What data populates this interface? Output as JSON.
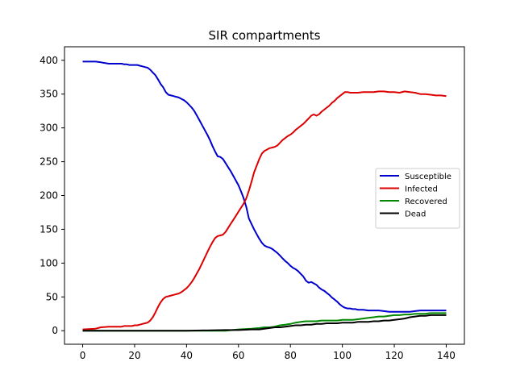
{
  "chart_data": {
    "type": "line",
    "title": "SIR compartments",
    "xlabel": "",
    "ylabel": "",
    "xlim": [
      -7,
      147
    ],
    "ylim": [
      -20,
      420
    ],
    "xticks": [
      0,
      20,
      40,
      60,
      80,
      100,
      120,
      140
    ],
    "yticks": [
      0,
      50,
      100,
      150,
      200,
      250,
      300,
      350,
      400
    ],
    "grid": false,
    "legend_position": "center-right",
    "series": [
      {
        "name": "Susceptible",
        "color": "#0000cc",
        "x": [
          0,
          5,
          7,
          10,
          14,
          15,
          16,
          17,
          18,
          19,
          20,
          21,
          22,
          23,
          24,
          25,
          26,
          27,
          28,
          29,
          30,
          31,
          32,
          33,
          34,
          35,
          36,
          37,
          38,
          39,
          40,
          41,
          42,
          43,
          44,
          45,
          46,
          47,
          48,
          49,
          50,
          51,
          52,
          53,
          54,
          55,
          56,
          57,
          58,
          59,
          60,
          61,
          62,
          63,
          64,
          65,
          66,
          67,
          68,
          69,
          70,
          71,
          72,
          73,
          74,
          75,
          76,
          77,
          78,
          79,
          80,
          81,
          82,
          83,
          84,
          85,
          86,
          87,
          88,
          89,
          90,
          91,
          92,
          93,
          94,
          95,
          96,
          97,
          98,
          99,
          100,
          101,
          102,
          103,
          104,
          105,
          106,
          108,
          110,
          112,
          114,
          116,
          118,
          120,
          122,
          124,
          126,
          128,
          130,
          132,
          134,
          136,
          138,
          140
        ],
        "values": [
          398,
          398,
          397,
          395,
          395,
          395,
          394,
          394,
          393,
          393,
          393,
          393,
          392,
          391,
          390,
          389,
          386,
          382,
          378,
          372,
          365,
          360,
          353,
          349,
          348,
          347,
          346,
          345,
          343,
          341,
          338,
          334,
          330,
          325,
          318,
          311,
          304,
          297,
          290,
          282,
          273,
          265,
          258,
          257,
          254,
          248,
          242,
          236,
          229,
          222,
          215,
          206,
          196,
          183,
          166,
          158,
          150,
          143,
          136,
          130,
          126,
          124,
          123,
          121,
          118,
          115,
          111,
          107,
          103,
          100,
          96,
          93,
          91,
          88,
          84,
          80,
          74,
          71,
          72,
          70,
          68,
          64,
          61,
          59,
          56,
          53,
          49,
          46,
          43,
          39,
          36,
          34,
          33,
          33,
          32,
          32,
          31,
          31,
          30,
          30,
          30,
          29,
          28,
          28,
          28,
          28,
          28,
          29,
          30,
          30,
          30,
          30,
          30,
          30
        ]
      },
      {
        "name": "Infected",
        "color": "#dd0000",
        "x": [
          0,
          5,
          7,
          10,
          14,
          15,
          16,
          17,
          18,
          19,
          20,
          21,
          22,
          23,
          24,
          25,
          26,
          27,
          28,
          29,
          30,
          31,
          32,
          33,
          34,
          35,
          36,
          37,
          38,
          39,
          40,
          41,
          42,
          43,
          44,
          45,
          46,
          47,
          48,
          49,
          50,
          51,
          52,
          53,
          54,
          55,
          56,
          57,
          58,
          59,
          60,
          61,
          62,
          63,
          64,
          65,
          66,
          67,
          68,
          69,
          70,
          71,
          72,
          73,
          74,
          75,
          76,
          77,
          78,
          79,
          80,
          81,
          82,
          83,
          84,
          85,
          86,
          87,
          88,
          89,
          90,
          91,
          92,
          93,
          94,
          95,
          96,
          97,
          98,
          99,
          100,
          101,
          102,
          103,
          104,
          105,
          106,
          108,
          110,
          112,
          114,
          116,
          118,
          120,
          122,
          124,
          126,
          128,
          130,
          132,
          134,
          136,
          138,
          140
        ],
        "values": [
          2,
          3,
          5,
          6,
          6,
          6,
          7,
          7,
          7,
          7,
          8,
          8,
          9,
          10,
          11,
          12,
          15,
          20,
          27,
          35,
          42,
          47,
          50,
          51,
          52,
          53,
          54,
          55,
          57,
          60,
          63,
          67,
          72,
          78,
          85,
          92,
          100,
          108,
          116,
          124,
          131,
          137,
          140,
          141,
          142,
          146,
          152,
          158,
          164,
          170,
          176,
          182,
          188,
          196,
          207,
          220,
          234,
          244,
          254,
          262,
          266,
          268,
          270,
          271,
          272,
          274,
          278,
          282,
          285,
          288,
          290,
          293,
          297,
          300,
          303,
          306,
          310,
          314,
          318,
          320,
          318,
          320,
          324,
          327,
          330,
          333,
          337,
          340,
          344,
          347,
          350,
          353,
          353,
          352,
          352,
          352,
          352,
          353,
          353,
          353,
          354,
          354,
          353,
          353,
          352,
          354,
          353,
          352,
          350,
          350,
          349,
          348,
          348,
          347
        ]
      },
      {
        "name": "Recovered",
        "color": "#008800",
        "x": [
          0,
          20,
          40,
          55,
          60,
          65,
          68,
          70,
          72,
          74,
          76,
          78,
          80,
          82,
          84,
          86,
          88,
          90,
          92,
          94,
          96,
          98,
          100,
          102,
          104,
          106,
          108,
          110,
          112,
          114,
          116,
          118,
          120,
          122,
          124,
          126,
          128,
          130,
          132,
          134,
          136,
          138,
          140
        ],
        "values": [
          0,
          0,
          0,
          0,
          2,
          3,
          4,
          5,
          5,
          6,
          8,
          9,
          10,
          12,
          13,
          14,
          14,
          14,
          15,
          15,
          15,
          15,
          16,
          16,
          16,
          17,
          18,
          19,
          20,
          21,
          21,
          22,
          23,
          23,
          24,
          24,
          25,
          25,
          25,
          26,
          26,
          26,
          26
        ]
      },
      {
        "name": "Dead",
        "color": "#000000",
        "x": [
          0,
          20,
          40,
          55,
          60,
          65,
          68,
          70,
          72,
          74,
          76,
          78,
          80,
          82,
          84,
          86,
          88,
          90,
          92,
          94,
          96,
          98,
          100,
          102,
          104,
          106,
          108,
          110,
          112,
          114,
          116,
          118,
          120,
          122,
          124,
          126,
          128,
          130,
          132,
          134,
          136,
          138,
          140
        ],
        "values": [
          0,
          0,
          0,
          1,
          1,
          2,
          2,
          3,
          4,
          5,
          5,
          6,
          7,
          8,
          8,
          9,
          9,
          10,
          10,
          11,
          11,
          11,
          12,
          12,
          12,
          13,
          13,
          13,
          14,
          14,
          15,
          15,
          16,
          17,
          18,
          20,
          21,
          22,
          22,
          23,
          23,
          23,
          23
        ]
      }
    ]
  }
}
